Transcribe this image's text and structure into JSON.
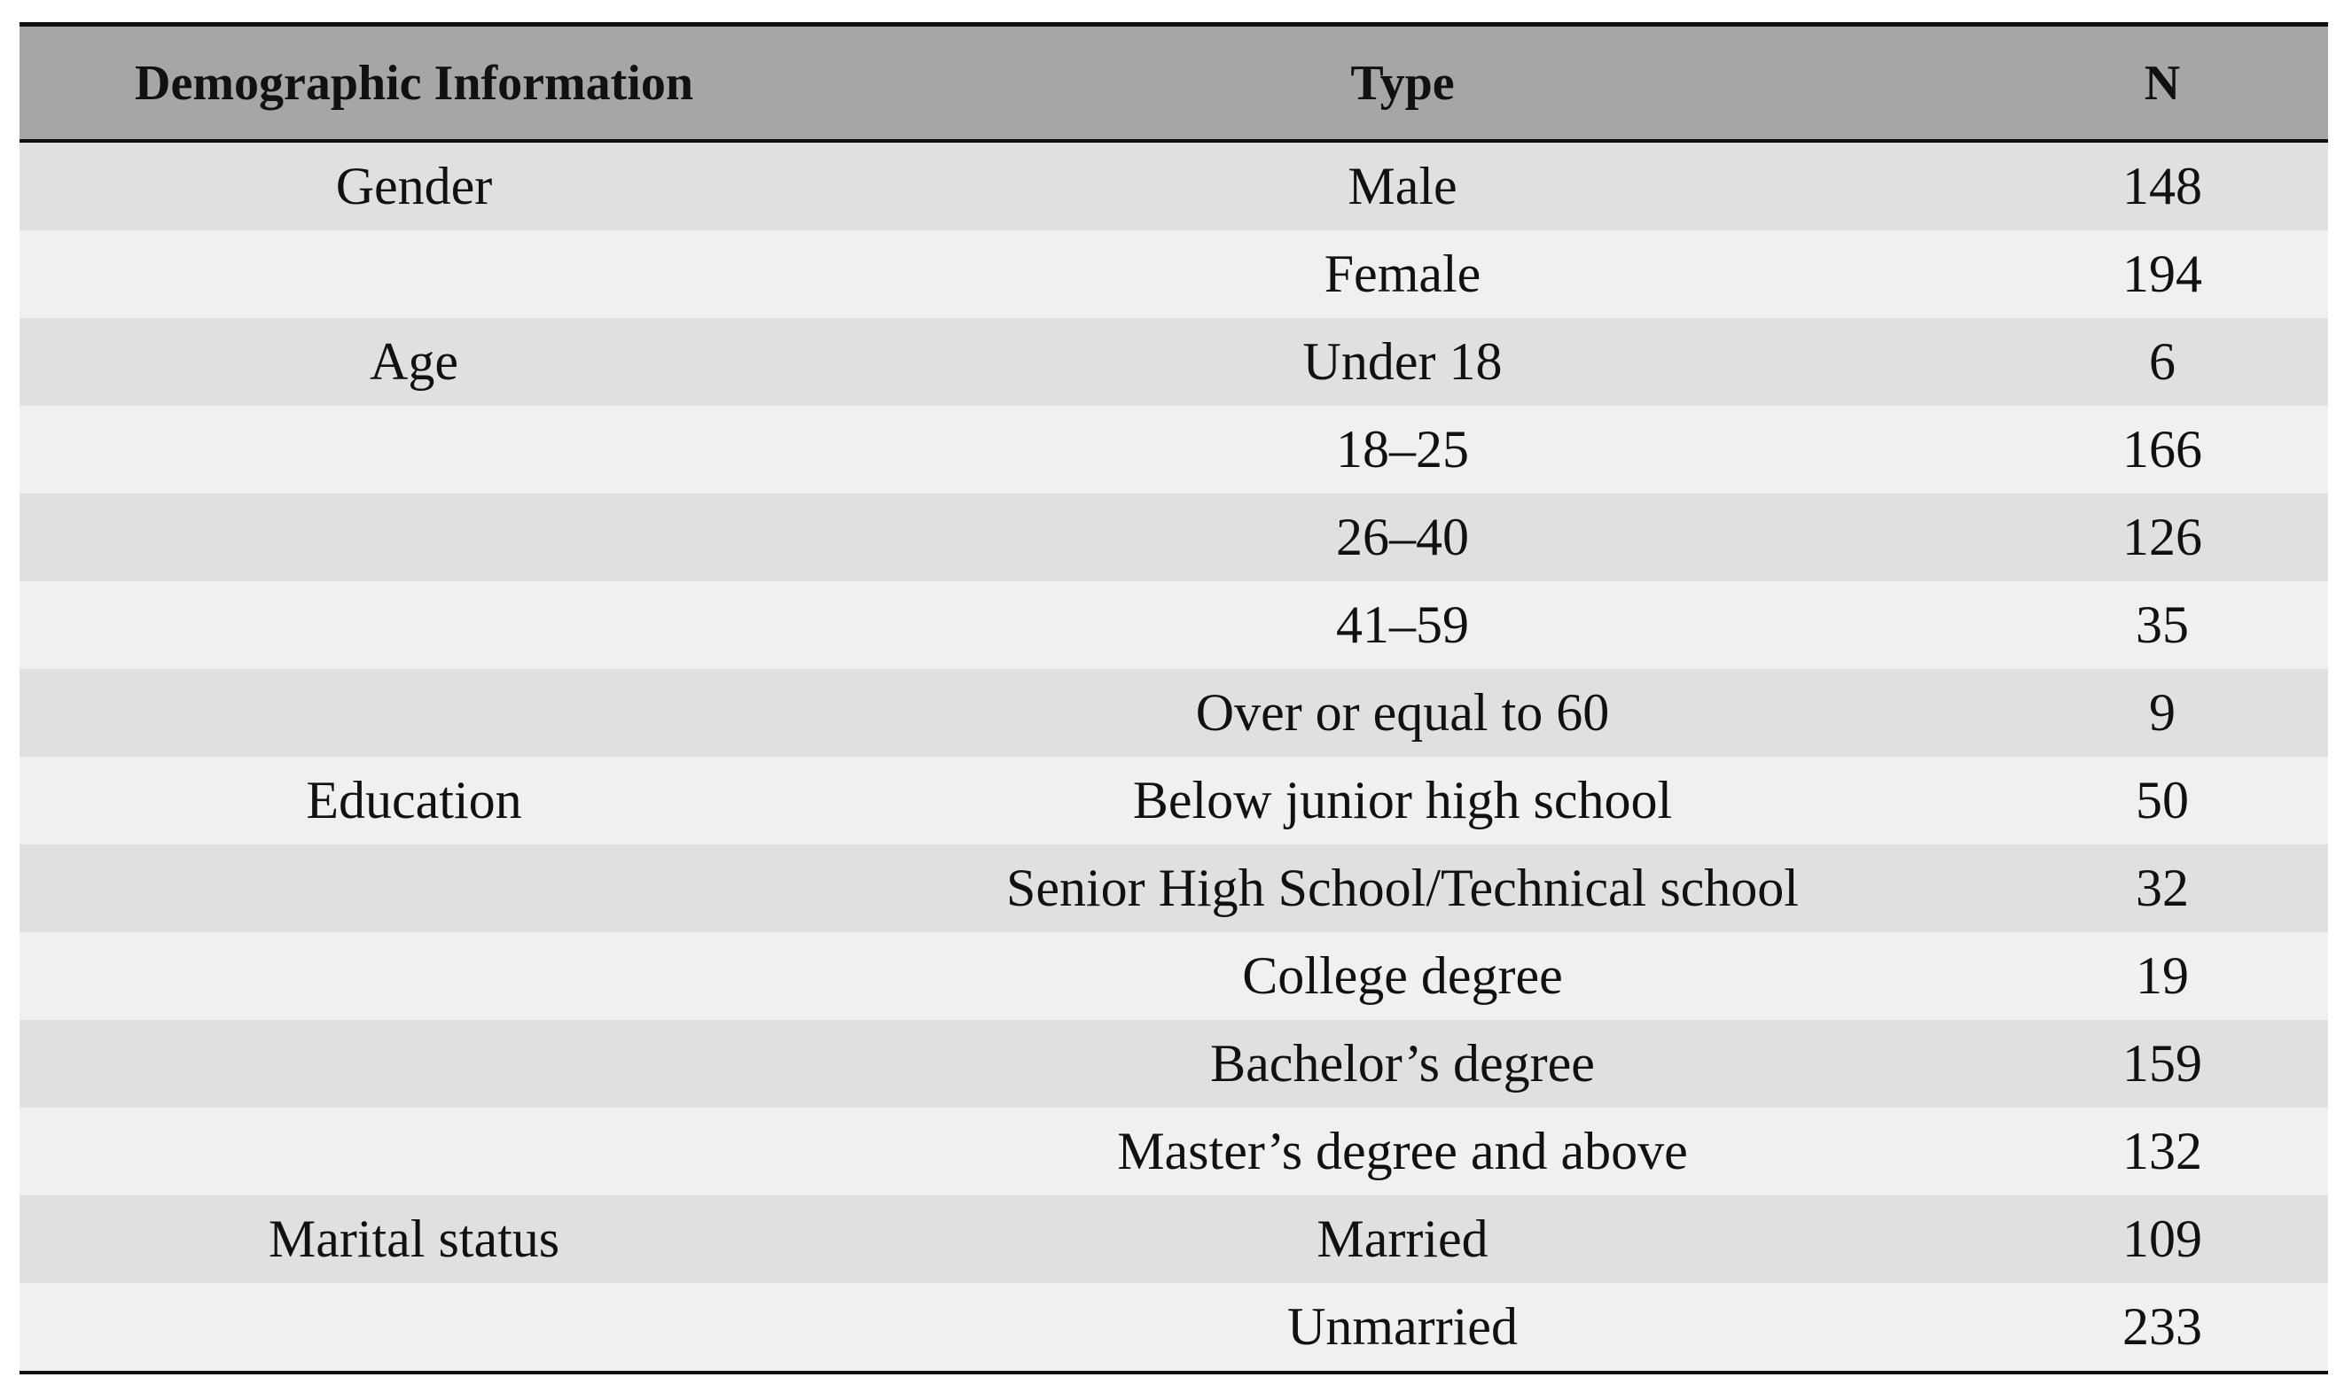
{
  "table": {
    "header": [
      "Demographic Information",
      "Type",
      "N"
    ],
    "rows": [
      [
        "Gender",
        "Male",
        148
      ],
      [
        null,
        "Female",
        194
      ],
      [
        "Age",
        "Under 18",
        6
      ],
      [
        null,
        "18–25",
        166
      ],
      [
        null,
        "26–40",
        126
      ],
      [
        null,
        "41–59",
        35
      ],
      [
        null,
        "Over or equal to 60",
        9
      ],
      [
        "Education",
        "Below junior high school",
        50
      ],
      [
        null,
        "Senior High School/Technical school",
        32
      ],
      [
        null,
        "College degree",
        19
      ],
      [
        null,
        "Bachelor’s degree",
        159
      ],
      [
        null,
        "Master’s degree and above",
        132
      ],
      [
        "Marital status",
        "Married",
        109
      ],
      [
        null,
        "Unmarried",
        233
      ]
    ]
  }
}
